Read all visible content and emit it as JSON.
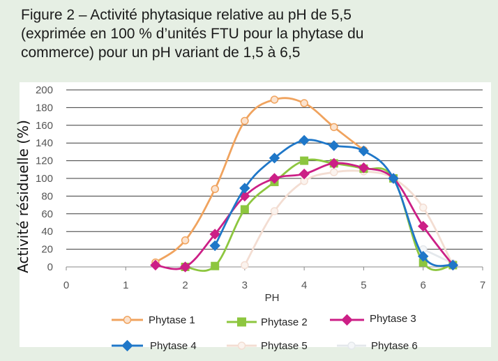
{
  "caption": {
    "line1": "Figure 2 – Activité phytasique relative au pH de 5,5",
    "line2": "(exprimée en 100 % d’unités FTU pour la phytase du",
    "line3": "commerce) pour un pH variant de 1,5 à 6,5"
  },
  "chart_data": {
    "type": "line",
    "title": "Figure 2 – Activité phytasique relative au pH de 5,5 (exprimée en 100 % d’unités FTU pour la phytase du commerce) pour un pH variant de 1,5 à 6,5",
    "xlabel": "PH",
    "ylabel": "Activité résiduelle (%)",
    "xlim": [
      0,
      7
    ],
    "ylim": [
      0,
      200
    ],
    "x_ticks": [
      0,
      1,
      2,
      3,
      4,
      5,
      6,
      7
    ],
    "y_ticks": [
      0,
      20,
      40,
      60,
      80,
      100,
      120,
      140,
      160,
      180,
      200
    ],
    "grid": "horizontal",
    "legend_placement": "bottom",
    "series": [
      {
        "name": "Phytase 1",
        "color": "#f0a35e",
        "marker": "circle",
        "marker_fill": "#fbe3cf",
        "points": [
          [
            1.5,
            5
          ],
          [
            2,
            30
          ],
          [
            2.5,
            88
          ],
          [
            3,
            165
          ],
          [
            3.5,
            189
          ],
          [
            4,
            185
          ],
          [
            4.5,
            158
          ],
          [
            5,
            132
          ]
        ]
      },
      {
        "name": "Phytase 2",
        "color": "#8dc63f",
        "marker": "square",
        "marker_fill": "#8dc63f",
        "points": [
          [
            2,
            0
          ],
          [
            2.5,
            1
          ],
          [
            3,
            65
          ],
          [
            3.5,
            96
          ],
          [
            4,
            120
          ],
          [
            4.5,
            117
          ],
          [
            5,
            111
          ],
          [
            5.5,
            100
          ],
          [
            6,
            5
          ],
          [
            6.5,
            2
          ]
        ]
      },
      {
        "name": "Phytase 3",
        "color": "#cc1f86",
        "marker": "diamond",
        "marker_fill": "#cc1f86",
        "points": [
          [
            1.5,
            2
          ],
          [
            2,
            0
          ],
          [
            2.5,
            37
          ],
          [
            3,
            80
          ],
          [
            3.5,
            100
          ],
          [
            4,
            105
          ],
          [
            4.5,
            117
          ],
          [
            5,
            112
          ],
          [
            5.5,
            100
          ],
          [
            6,
            46
          ],
          [
            6.5,
            2
          ]
        ]
      },
      {
        "name": "Phytase 4",
        "color": "#1f77c8",
        "marker": "diamond",
        "marker_fill": "#1f77c8",
        "points": [
          [
            2.5,
            24
          ],
          [
            3,
            89
          ],
          [
            3.5,
            123
          ],
          [
            4,
            143
          ],
          [
            4.5,
            137
          ],
          [
            5,
            131
          ],
          [
            5.5,
            100
          ],
          [
            6,
            12
          ],
          [
            6.5,
            2
          ]
        ]
      },
      {
        "name": "Phytase 5",
        "color": "#f3ddd2",
        "marker": "circle",
        "marker_fill": "#fbf3ee",
        "points": [
          [
            3,
            2
          ],
          [
            3.5,
            63
          ],
          [
            4,
            97
          ],
          [
            4.5,
            107
          ],
          [
            5,
            108
          ],
          [
            5.5,
            100
          ],
          [
            6,
            67
          ],
          [
            6.5,
            2
          ]
        ]
      },
      {
        "name": "Phytase 6",
        "color": "#e4e8ec",
        "marker": "circle",
        "marker_fill": "#f4f6f8",
        "points": [
          [
            6,
            20
          ],
          [
            6.5,
            4
          ]
        ]
      }
    ]
  }
}
